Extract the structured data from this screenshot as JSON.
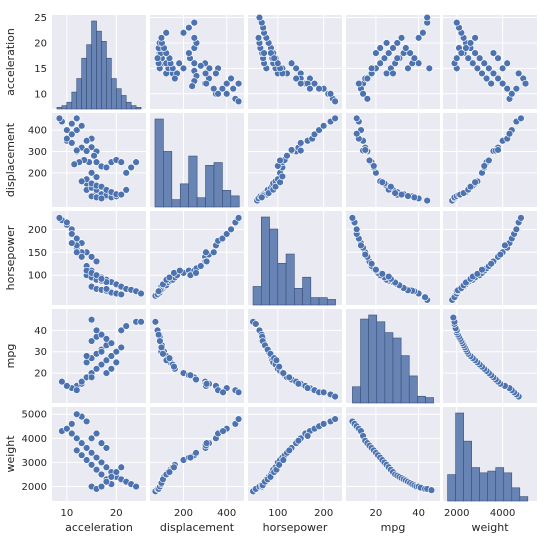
{
  "chart_data": {
    "type": "scatter",
    "kind": "pairplot",
    "variables": [
      "acceleration",
      "displacement",
      "horsepower",
      "mpg",
      "weight"
    ],
    "colors": {
      "marker": "#4c72b0",
      "hist_fill": "#6884b5",
      "panel_bg": "#eaeaf2",
      "grid": "#ffffff"
    },
    "grid": true,
    "axes": {
      "acceleration": {
        "label": "acceleration",
        "range": [
          7,
          26
        ],
        "ticks": [
          10,
          20
        ],
        "y_range": [
          7,
          25.5
        ],
        "y_ticks": [
          10,
          15,
          20,
          25
        ]
      },
      "displacement": {
        "label": "displacement",
        "range": [
          45,
          480
        ],
        "ticks": [
          200,
          400
        ],
        "y_range": [
          40,
          480
        ],
        "y_ticks": [
          200,
          300,
          400
        ]
      },
      "horsepower": {
        "label": "horsepower",
        "range": [
          35,
          240
        ],
        "ticks": [
          100,
          200
        ],
        "y_range": [
          35,
          240
        ],
        "y_ticks": [
          100,
          150,
          200
        ]
      },
      "mpg": {
        "label": "mpg",
        "range": [
          6,
          50
        ],
        "ticks": [
          20,
          40
        ],
        "y_range": [
          6,
          50
        ],
        "y_ticks": [
          20,
          30,
          40
        ]
      },
      "weight": {
        "label": "weight",
        "range": [
          1400,
          5500
        ],
        "ticks": [
          2000,
          4000
        ],
        "y_range": [
          1400,
          5300
        ],
        "y_ticks": [
          2000,
          3000,
          4000,
          5000
        ]
      }
    },
    "histograms": {
      "acceleration": {
        "bins": [
          8,
          9,
          10,
          11,
          12,
          13,
          14,
          15,
          16,
          17,
          18,
          19,
          20,
          21,
          22,
          23,
          24,
          25
        ],
        "counts": [
          1,
          2,
          4,
          10,
          18,
          30,
          38,
          52,
          46,
          40,
          30,
          18,
          12,
          8,
          4,
          2,
          1
        ]
      },
      "displacement": {
        "bins": [
          68,
          107,
          146,
          185,
          224,
          263,
          302,
          341,
          380,
          419,
          458
        ],
        "counts": [
          95,
          60,
          8,
          25,
          55,
          10,
          45,
          48,
          18,
          12
        ]
      },
      "horsepower": {
        "bins": [
          46,
          64,
          82,
          100,
          118,
          136,
          154,
          172,
          190,
          208,
          226
        ],
        "counts": [
          20,
          95,
          82,
          45,
          55,
          18,
          30,
          8,
          8,
          6
        ]
      },
      "mpg": {
        "bins": [
          9,
          12.8,
          16.6,
          20.4,
          24.2,
          28,
          31.8,
          35.6,
          39.4,
          43.2,
          47
        ],
        "counts": [
          12,
          62,
          65,
          60,
          52,
          48,
          35,
          20,
          5,
          4
        ]
      },
      "weight": {
        "bins": [
          1600,
          1950,
          2300,
          2650,
          3000,
          3350,
          3700,
          4050,
          4400,
          4750,
          5100
        ],
        "counts": [
          30,
          100,
          68,
          38,
          32,
          34,
          38,
          32,
          15,
          5
        ]
      }
    },
    "pairs": [
      {
        "name": "acceleration-vs-displacement",
        "x": [
          12,
          13,
          11,
          12,
          15,
          10,
          9,
          8.5,
          10,
          11,
          14,
          15,
          16,
          15.5,
          14.5,
          13.5,
          12.5,
          11.5,
          16,
          17,
          18,
          19,
          20,
          21,
          22,
          23,
          24,
          15,
          14,
          16,
          17,
          18,
          14,
          15,
          16,
          17,
          18,
          19,
          20,
          21,
          22,
          15,
          16,
          17,
          19,
          20,
          15,
          16,
          14,
          13,
          15,
          16,
          17,
          18,
          19,
          20,
          21,
          12,
          13,
          14,
          11,
          10,
          12
        ],
        "y": [
          400,
          420,
          430,
          455,
          360,
          350,
          440,
          455,
          400,
          380,
          350,
          320,
          300,
          280,
          250,
          260,
          250,
          240,
          250,
          230,
          225,
          250,
          260,
          250,
          200,
          225,
          250,
          140,
          120,
          110,
          100,
          90,
          150,
          130,
          120,
          100,
          95,
          98,
          90,
          100,
          120,
          90,
          85,
          80,
          85,
          90,
          200,
          180,
          170,
          160,
          150,
          140,
          135,
          120,
          110,
          100,
          98,
          300,
          318,
          302,
          340,
          360,
          305
        ]
      },
      {
        "name": "acceleration-vs-horsepower",
        "x": [
          9,
          10,
          11,
          8.5,
          12,
          13,
          11,
          10,
          12,
          14,
          15,
          16,
          13,
          12,
          14,
          15,
          16,
          17,
          18,
          19,
          20,
          21,
          22,
          23,
          24,
          25,
          14,
          15,
          16,
          17,
          18,
          15,
          16,
          17,
          18,
          19,
          20,
          21,
          13,
          12,
          11,
          14,
          15,
          16,
          17,
          18
        ],
        "y": [
          220,
          210,
          200,
          225,
          180,
          170,
          190,
          215,
          160,
          150,
          140,
          130,
          150,
          165,
          120,
          110,
          100,
          95,
          90,
          85,
          80,
          75,
          70,
          68,
          65,
          60,
          100,
          95,
          90,
          88,
          85,
          75,
          70,
          68,
          66,
          62,
          60,
          58,
          140,
          150,
          170,
          110,
          105,
          100,
          92,
          70
        ]
      },
      {
        "name": "acceleration-vs-mpg",
        "x": [
          12,
          13,
          14,
          15,
          16,
          17,
          18,
          19,
          20,
          21,
          14,
          15,
          16,
          17,
          18,
          15,
          16,
          17,
          18,
          19,
          13,
          14,
          15,
          16,
          21,
          22,
          24,
          25,
          11,
          12,
          10,
          9,
          15,
          16,
          17,
          18,
          19,
          20,
          14,
          15
        ],
        "y": [
          14,
          15,
          18,
          20,
          22,
          24,
          26,
          28,
          30,
          32,
          25,
          27,
          29,
          31,
          33,
          35,
          37,
          38,
          36,
          34,
          16,
          18,
          20,
          22,
          40,
          42,
          44,
          44,
          13,
          12,
          14,
          16,
          45,
          40,
          30,
          20,
          22,
          25,
          28,
          18
        ]
      },
      {
        "name": "acceleration-vs-weight",
        "x": [
          9,
          10,
          11,
          12,
          13,
          14,
          15,
          16,
          17,
          18,
          19,
          20,
          21,
          22,
          23,
          24,
          12,
          13,
          14,
          15,
          16,
          17,
          18,
          19,
          15,
          16,
          17,
          18,
          14,
          13,
          12,
          11,
          15,
          16,
          17,
          18,
          19,
          20,
          21
        ],
        "y": [
          4300,
          4400,
          4200,
          4000,
          3800,
          3600,
          3400,
          3200,
          3000,
          2800,
          2600,
          2400,
          2300,
          2200,
          2100,
          2000,
          3500,
          3300,
          3100,
          2900,
          2700,
          2500,
          2300,
          2100,
          4000,
          4200,
          3800,
          3600,
          4700,
          4900,
          5000,
          4600,
          2000,
          1900,
          2000,
          2200,
          2400,
          2600,
          2800
        ]
      },
      {
        "name": "displacement-vs-horsepower",
        "x": [
          70,
          80,
          90,
          100,
          110,
          120,
          130,
          140,
          150,
          160,
          170,
          200,
          225,
          230,
          250,
          260,
          280,
          300,
          318,
          340,
          350,
          360,
          380,
          400,
          420,
          440,
          455,
          98,
          97,
          91,
          85,
          105,
          121,
          135,
          156,
          183,
          232,
          258,
          302,
          304,
          307
        ],
        "y": [
          55,
          58,
          62,
          70,
          75,
          78,
          85,
          88,
          90,
          95,
          100,
          105,
          110,
          100,
          110,
          115,
          120,
          140,
          145,
          150,
          165,
          175,
          180,
          190,
          200,
          215,
          225,
          68,
          75,
          67,
          65,
          80,
          90,
          95,
          105,
          110,
          100,
          105,
          130,
          150,
          130
        ]
      },
      {
        "name": "displacement-vs-mpg",
        "x": [
          70,
          80,
          90,
          100,
          110,
          120,
          130,
          140,
          150,
          160,
          200,
          225,
          250,
          300,
          318,
          350,
          400,
          440,
          455,
          85,
          91,
          97,
          98,
          105,
          121,
          135,
          156,
          232,
          258,
          302,
          304,
          307,
          360,
          383
        ],
        "y": [
          44,
          40,
          37,
          33,
          30,
          28,
          26,
          25,
          24,
          22,
          20,
          19,
          18,
          16,
          15,
          14,
          13,
          12,
          11,
          38,
          35,
          30,
          32,
          29,
          26,
          27,
          23,
          19,
          17,
          15,
          14,
          15,
          12,
          11
        ]
      },
      {
        "name": "displacement-vs-weight",
        "x": [
          70,
          80,
          90,
          100,
          110,
          120,
          130,
          140,
          150,
          160,
          200,
          225,
          250,
          300,
          318,
          350,
          400,
          440,
          455,
          85,
          91,
          97,
          98,
          105,
          121,
          135,
          156,
          232,
          258,
          302,
          304,
          307,
          360,
          383
        ],
        "y": [
          1800,
          1900,
          2000,
          2200,
          2400,
          2500,
          2600,
          2700,
          2800,
          2900,
          3100,
          3200,
          3300,
          3700,
          3800,
          4000,
          4400,
          4600,
          4800,
          1900,
          2000,
          2100,
          2150,
          2300,
          2500,
          2600,
          2800,
          3200,
          3400,
          3600,
          3700,
          3800,
          4200,
          4300
        ]
      },
      {
        "name": "horsepower-vs-mpg",
        "x": [
          46,
          52,
          60,
          65,
          68,
          70,
          75,
          80,
          85,
          88,
          90,
          95,
          100,
          105,
          110,
          115,
          120,
          130,
          140,
          150,
          160,
          170,
          180,
          190,
          200,
          215,
          225,
          66,
          67,
          72,
          78,
          84,
          92,
          97,
          103,
          112,
          125,
          145,
          165
        ],
        "y": [
          44,
          43,
          40,
          38,
          36,
          34,
          32,
          30,
          28,
          26,
          25,
          24,
          22,
          21,
          20,
          19,
          18,
          17,
          16,
          15,
          14,
          13,
          12,
          11,
          11,
          10,
          9,
          37,
          35,
          33,
          31,
          29,
          27,
          26,
          23,
          20,
          18,
          15,
          13
        ]
      },
      {
        "name": "horsepower-vs-weight",
        "x": [
          46,
          52,
          60,
          65,
          68,
          70,
          75,
          80,
          85,
          88,
          90,
          95,
          100,
          105,
          110,
          115,
          120,
          130,
          140,
          150,
          160,
          170,
          180,
          190,
          200,
          215,
          225,
          66,
          67,
          72,
          78,
          84,
          92,
          97,
          103,
          112,
          125,
          145,
          165
        ],
        "y": [
          1800,
          1900,
          2000,
          2100,
          2150,
          2200,
          2300,
          2400,
          2500,
          2600,
          2700,
          2800,
          3000,
          3100,
          3200,
          3300,
          3400,
          3600,
          3800,
          4000,
          4200,
          4300,
          4400,
          4500,
          4600,
          4700,
          4800,
          2000,
          2050,
          2200,
          2300,
          2400,
          2600,
          2700,
          2900,
          3100,
          3500,
          3900,
          4100
        ]
      },
      {
        "name": "mpg-vs-weight",
        "x": [
          9,
          10,
          11,
          12,
          13,
          14,
          15,
          16,
          17,
          18,
          19,
          20,
          21,
          22,
          23,
          24,
          25,
          26,
          27,
          28,
          29,
          30,
          31,
          32,
          33,
          34,
          35,
          36,
          37,
          38,
          39,
          40,
          41,
          43,
          44,
          46
        ],
        "y": [
          4700,
          4600,
          4500,
          4400,
          4300,
          4100,
          3900,
          3800,
          3700,
          3600,
          3500,
          3400,
          3300,
          3200,
          3100,
          3000,
          2900,
          2800,
          2700,
          2600,
          2500,
          2450,
          2400,
          2350,
          2300,
          2250,
          2200,
          2150,
          2100,
          2050,
          2000,
          2000,
          1950,
          1900,
          1900,
          1850
        ]
      }
    ]
  }
}
